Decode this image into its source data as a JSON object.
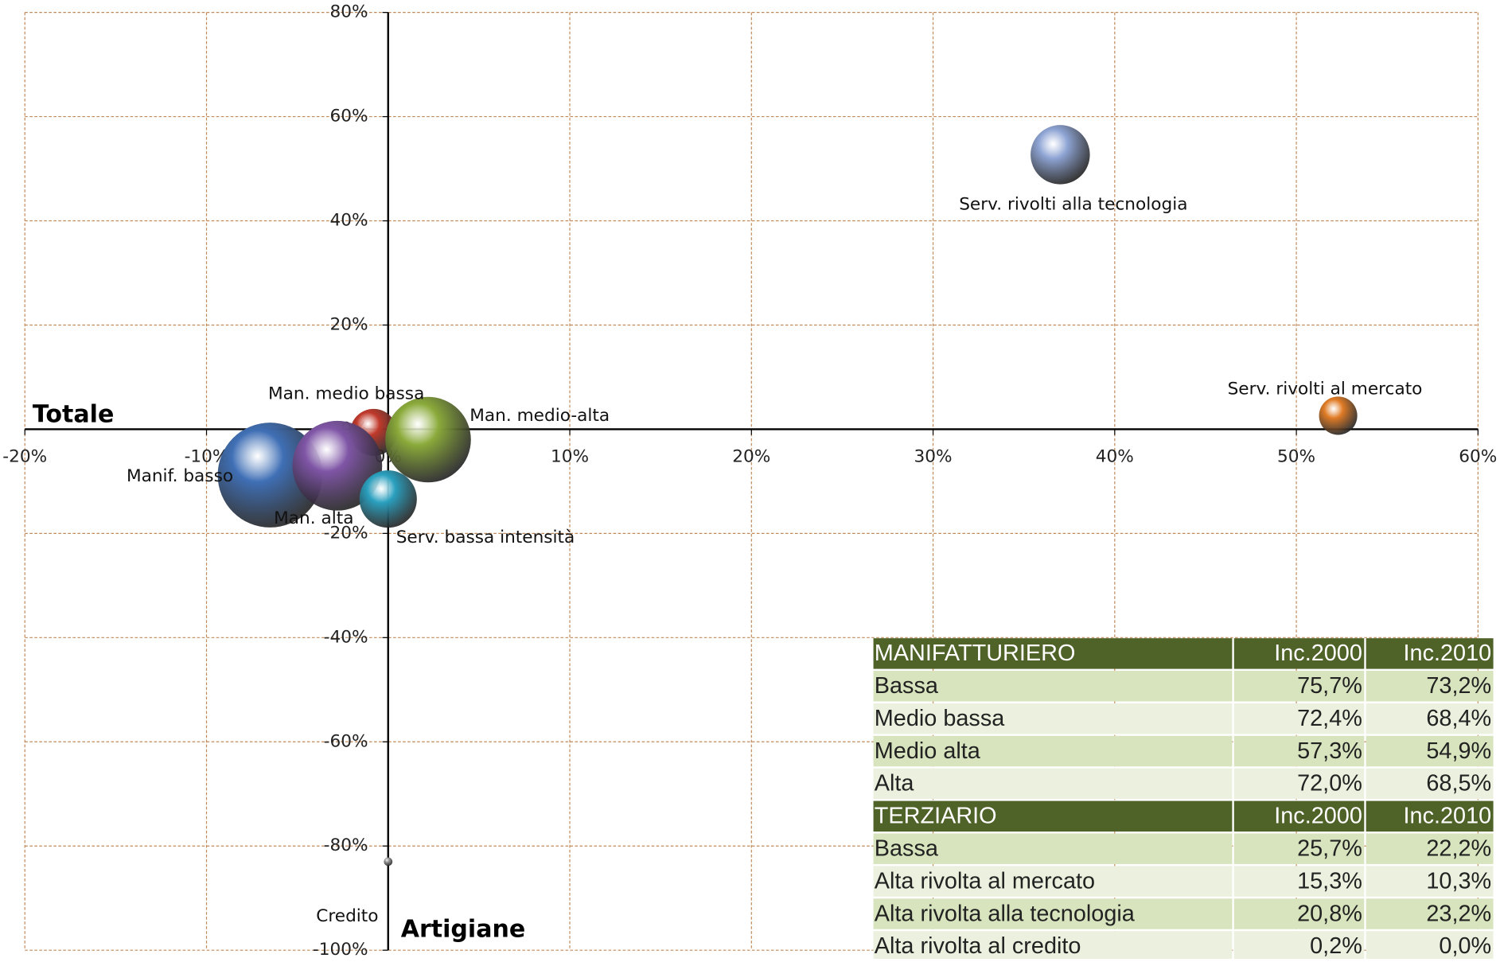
{
  "chart_data": {
    "type": "bubble",
    "x_axis_title": "Totale",
    "y_axis_title": "Artigiane",
    "xlim": [
      -20,
      60
    ],
    "xticks": [
      {
        "value": -20,
        "label": "-20%"
      },
      {
        "value": -10,
        "label": "-10%"
      },
      {
        "value": 0,
        "label": "0%"
      },
      {
        "value": 10,
        "label": "10%"
      },
      {
        "value": 20,
        "label": "20%"
      },
      {
        "value": 30,
        "label": "30%"
      },
      {
        "value": 40,
        "label": "40%"
      },
      {
        "value": 50,
        "label": "50%"
      },
      {
        "value": 60,
        "label": "60%"
      }
    ],
    "ylim": [
      -100,
      80
    ],
    "yticks": [
      {
        "value": -100,
        "label": "-100%"
      },
      {
        "value": -80,
        "label": "-80%"
      },
      {
        "value": -60,
        "label": "-60%"
      },
      {
        "value": -40,
        "label": "-40%"
      },
      {
        "value": -20,
        "label": "-20%"
      },
      {
        "value": 0,
        "label": "0%"
      },
      {
        "value": 20,
        "label": "20%"
      },
      {
        "value": 40,
        "label": "40%"
      },
      {
        "value": 60,
        "label": "60%"
      },
      {
        "value": 80,
        "label": "80%"
      }
    ],
    "grid": true,
    "series": [
      {
        "name": "Serv. rivolti alla tecnologia",
        "color": "#8ea4d4",
        "x": 37,
        "y": 52.7,
        "size": 9.6
      },
      {
        "name": "Serv. rivolti al mercato",
        "color": "#e07b25",
        "x": 52.3,
        "y": 2.6,
        "size": 4
      },
      {
        "name": "Man. medio bassa",
        "color": "#c0392b",
        "x": -0.8,
        "y": -0.6,
        "size": 6
      },
      {
        "name": "Manif. basso",
        "color": "#3f6fb5",
        "x": -6.5,
        "y": -8.8,
        "size": 30
      },
      {
        "name": "Man. alta",
        "color": "#7f55a6",
        "x": -2.8,
        "y": -7,
        "size": 22
      },
      {
        "name": "Man. medio-alta",
        "color": "#8aaa3a",
        "x": 2.2,
        "y": -2,
        "size": 20
      },
      {
        "name": "Serv. bassa intensità",
        "color": "#2aa0bf",
        "x": 0,
        "y": -13.4,
        "size": 9
      },
      {
        "name": "Credito",
        "color": "#999999",
        "x": 0,
        "y": -83,
        "size": 0.2
      }
    ]
  },
  "table": {
    "sections": [
      {
        "header": [
          "MANIFATTURIERO",
          "Inc.2000",
          "Inc.2010"
        ],
        "rows": [
          [
            "Bassa",
            "75,7%",
            "73,2%"
          ],
          [
            "Medio bassa",
            "72,4%",
            "68,4%"
          ],
          [
            "Medio alta",
            "57,3%",
            "54,9%"
          ],
          [
            "Alta",
            "72,0%",
            "68,5%"
          ]
        ]
      },
      {
        "header": [
          "TERZIARIO",
          "Inc.2000",
          "Inc.2010"
        ],
        "rows": [
          [
            "Bassa",
            "25,7%",
            "22,2%"
          ],
          [
            "Alta rivolta al mercato",
            "15,3%",
            "10,3%"
          ],
          [
            "Alta rivolta alla tecnologia",
            "20,8%",
            "23,2%"
          ],
          [
            "Alta rivolta al credito",
            "0,2%",
            "0,0%"
          ]
        ]
      }
    ]
  }
}
